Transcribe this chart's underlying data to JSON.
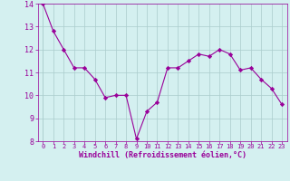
{
  "x": [
    0,
    1,
    2,
    3,
    4,
    5,
    6,
    7,
    8,
    9,
    10,
    11,
    12,
    13,
    14,
    15,
    16,
    17,
    18,
    19,
    20,
    21,
    22,
    23
  ],
  "y": [
    14.0,
    12.8,
    12.0,
    11.2,
    11.2,
    10.7,
    9.9,
    10.0,
    10.0,
    8.1,
    9.3,
    9.7,
    11.2,
    11.2,
    11.5,
    11.8,
    11.7,
    12.0,
    11.8,
    11.1,
    11.2,
    10.7,
    10.3,
    9.6
  ],
  "line_color": "#990099",
  "marker": "D",
  "marker_size": 2.2,
  "bg_color": "#d4f0f0",
  "grid_color": "#aacccc",
  "xlabel": "Windchill (Refroidissement éolien,°C)",
  "xlabel_color": "#990099",
  "tick_color": "#990099",
  "ylim": [
    8,
    14
  ],
  "xlim": [
    -0.5,
    23.5
  ],
  "yticks": [
    8,
    9,
    10,
    11,
    12,
    13,
    14
  ],
  "xticks": [
    0,
    1,
    2,
    3,
    4,
    5,
    6,
    7,
    8,
    9,
    10,
    11,
    12,
    13,
    14,
    15,
    16,
    17,
    18,
    19,
    20,
    21,
    22,
    23
  ]
}
